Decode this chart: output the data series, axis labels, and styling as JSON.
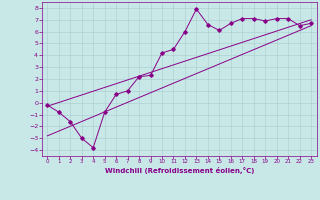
{
  "xlabel": "Windchill (Refroidissement éolien,°C)",
  "bg_color": "#c8e8e8",
  "line_color": "#880088",
  "grid_color": "#aacccc",
  "xlim": [
    -0.5,
    23.5
  ],
  "ylim": [
    -4.5,
    8.5
  ],
  "xticks": [
    0,
    1,
    2,
    3,
    4,
    5,
    6,
    7,
    8,
    9,
    10,
    11,
    12,
    13,
    14,
    15,
    16,
    17,
    18,
    19,
    20,
    21,
    22,
    23
  ],
  "yticks": [
    -4,
    -3,
    -2,
    -1,
    0,
    1,
    2,
    3,
    4,
    5,
    6,
    7,
    8
  ],
  "series1_x": [
    0,
    1,
    2,
    3,
    4,
    5,
    6,
    7,
    8,
    9,
    10,
    11,
    12,
    13,
    14,
    15,
    16,
    17,
    18,
    19,
    20,
    21,
    22,
    23
  ],
  "series1_y": [
    -0.2,
    -0.8,
    -1.6,
    -3.0,
    -3.8,
    -0.8,
    0.7,
    1.0,
    2.2,
    2.3,
    4.2,
    4.5,
    6.0,
    7.9,
    6.6,
    6.1,
    6.7,
    7.1,
    7.1,
    6.9,
    7.1,
    7.1,
    6.5,
    6.7
  ],
  "series2_x": [
    0,
    23
  ],
  "series2_y": [
    -2.8,
    6.5
  ],
  "series3_x": [
    0,
    23
  ],
  "series3_y": [
    -0.3,
    7.0
  ]
}
